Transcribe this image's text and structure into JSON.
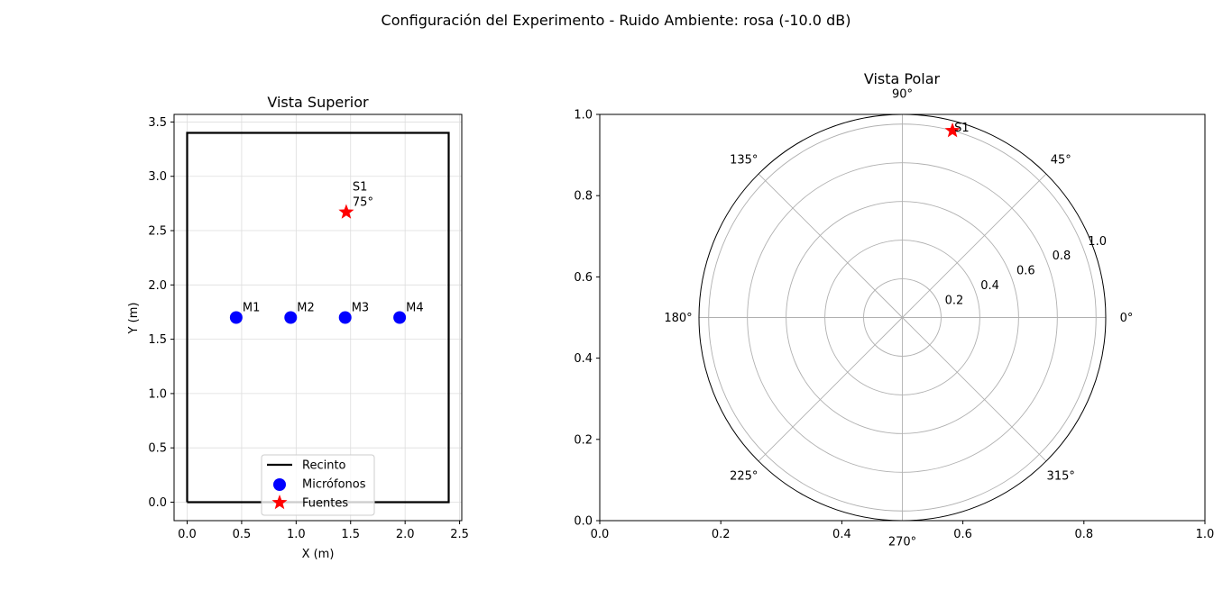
{
  "figure": {
    "suptitle": "Configuración del Experimento - Ruido Ambiente: rosa (-10.0 dB)"
  },
  "chart_data": [
    {
      "type": "scatter",
      "title": "Vista Superior",
      "xlabel": "X (m)",
      "ylabel": "Y (m)",
      "xlim": [
        -0.12,
        2.52
      ],
      "ylim": [
        -0.17,
        3.57
      ],
      "xticks": [
        "0.0",
        "0.5",
        "1.0",
        "1.5",
        "2.0",
        "2.5"
      ],
      "xtick_values": [
        0.0,
        0.5,
        1.0,
        1.5,
        2.0,
        2.5
      ],
      "yticks": [
        "0.0",
        "0.5",
        "1.0",
        "1.5",
        "2.0",
        "2.5",
        "3.0",
        "3.5"
      ],
      "ytick_values": [
        0.0,
        0.5,
        1.0,
        1.5,
        2.0,
        2.5,
        3.0,
        3.5
      ],
      "grid": true,
      "room": {
        "x": [
          0,
          2.4,
          2.4,
          0,
          0
        ],
        "y": [
          0,
          0,
          3.4,
          3.4,
          0
        ],
        "color": "#000000"
      },
      "microphones": {
        "color": "#0000ff",
        "points": [
          {
            "label": "M1",
            "x": 0.45,
            "y": 1.7
          },
          {
            "label": "M2",
            "x": 0.95,
            "y": 1.7
          },
          {
            "label": "M3",
            "x": 1.45,
            "y": 1.7
          },
          {
            "label": "M4",
            "x": 1.95,
            "y": 1.7
          }
        ]
      },
      "sources": {
        "color": "#ff0000",
        "points": [
          {
            "label": "S1\n75°",
            "x": 1.46,
            "y": 2.67
          }
        ]
      },
      "legend": {
        "position": "lower-center",
        "entries": [
          {
            "label": "Recinto",
            "marker": "line",
            "color": "#000000"
          },
          {
            "label": "Micrófonos",
            "marker": "circle",
            "color": "#0000ff"
          },
          {
            "label": "Fuentes",
            "marker": "star",
            "color": "#ff0000"
          }
        ]
      }
    },
    {
      "type": "scatter",
      "title": "Vista Polar",
      "xlim": [
        0,
        1
      ],
      "ylim": [
        0,
        1
      ],
      "xticks": [
        "0.0",
        "0.2",
        "0.4",
        "0.6",
        "0.8",
        "1.0"
      ],
      "xtick_values": [
        0.0,
        0.2,
        0.4,
        0.6,
        0.8,
        1.0
      ],
      "yticks": [
        "0.0",
        "0.2",
        "0.4",
        "0.6",
        "0.8",
        "1.0"
      ],
      "ytick_values": [
        0.0,
        0.2,
        0.4,
        0.6,
        0.8,
        1.0
      ],
      "polar": {
        "rmax": 1.05,
        "rgrid": [
          0.2,
          0.4,
          0.6,
          0.8,
          1.0
        ],
        "rgrid_labels": [
          "0.2",
          "0.4",
          "0.6",
          "0.8",
          "1.0"
        ],
        "theta_grid": [
          0,
          45,
          90,
          135,
          180,
          225,
          270,
          315
        ],
        "theta_labels": [
          "0°",
          "45°",
          "90°",
          "135°",
          "180°",
          "225°",
          "270°",
          "315°"
        ]
      },
      "sources": {
        "color": "#ff0000",
        "points": [
          {
            "label": "S1",
            "theta_deg": 75,
            "r": 1.0
          }
        ]
      }
    }
  ]
}
